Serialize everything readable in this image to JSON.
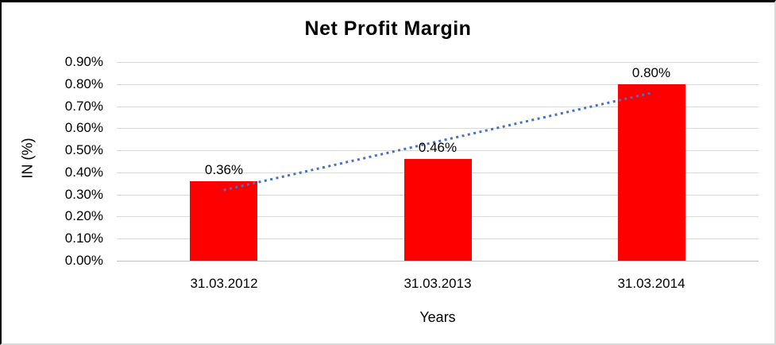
{
  "chart_data": {
    "type": "bar",
    "title": "Net Profit Margin",
    "xlabel": "Years",
    "ylabel": "IN (%)",
    "categories": [
      "31.03.2012",
      "31.03.2013",
      "31.03.2014"
    ],
    "values": [
      0.36,
      0.46,
      0.8
    ],
    "data_labels": [
      "0.36%",
      "0.46%",
      "0.80%"
    ],
    "y_ticks": [
      "0.00%",
      "0.10%",
      "0.20%",
      "0.30%",
      "0.40%",
      "0.50%",
      "0.60%",
      "0.70%",
      "0.80%",
      "0.90%"
    ],
    "y_tick_values": [
      0.0,
      0.1,
      0.2,
      0.3,
      0.4,
      0.5,
      0.6,
      0.7,
      0.8,
      0.9
    ],
    "ylim": [
      0.0,
      0.9
    ],
    "grid": true,
    "legend": "none",
    "bar_color": "#ff0000",
    "gridline_color": "#d9d9d9",
    "axis_line_color": "#c0c0c0",
    "trendline": {
      "type": "linear",
      "style": "dotted",
      "color": "#4472c4",
      "start_value": 0.32,
      "end_value": 0.76
    }
  }
}
